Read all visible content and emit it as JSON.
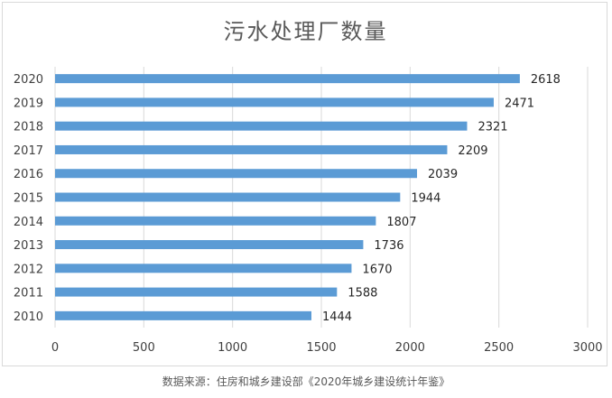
{
  "chart_data": {
    "type": "bar",
    "orientation": "horizontal",
    "title": "污水处理厂数量",
    "categories": [
      "2010",
      "2011",
      "2012",
      "2013",
      "2014",
      "2015",
      "2016",
      "2017",
      "2018",
      "2019",
      "2020"
    ],
    "values": [
      1444,
      1588,
      1670,
      1736,
      1807,
      1944,
      2039,
      2209,
      2321,
      2471,
      2618
    ],
    "xlim": [
      0,
      3000
    ],
    "x_ticks": [
      0,
      500,
      1000,
      1500,
      2000,
      2500,
      3000
    ],
    "grid": "vertical",
    "bar_color": "#5b9bd5",
    "data_labels": true
  },
  "source_note": "数据来源：住房和城乡建设部《2020年城乡建设统计年鉴》"
}
